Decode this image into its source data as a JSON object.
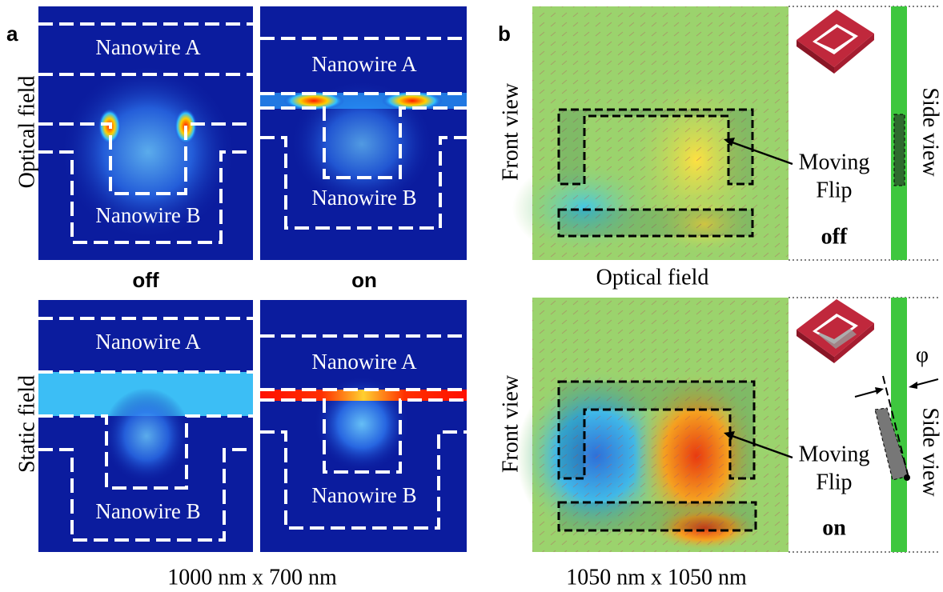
{
  "panel_a": {
    "label": "a",
    "row_labels": [
      "Optical field",
      "Static field"
    ],
    "column_labels": [
      "off",
      "on"
    ],
    "maps": [
      {
        "top_label": "Nanowire A",
        "bottom_label": "Nanowire B"
      },
      {
        "top_label": "Nanowire A",
        "bottom_label": "Nanowire B"
      },
      {
        "top_label": "Nanowire A",
        "bottom_label": "Nanowire B"
      },
      {
        "top_label": "Nanowire A",
        "bottom_label": "Nanowire B"
      }
    ],
    "caption": "1000 nm x 700 nm"
  },
  "panel_b": {
    "label": "b",
    "rows": [
      {
        "front_label": "Front view",
        "side_label": "Side view",
        "annotation": [
          "Moving",
          "Flip"
        ],
        "state": "off",
        "caption": "Optical field"
      },
      {
        "front_label": "Front view",
        "side_label": "Side view",
        "annotation": [
          "Moving",
          "Flip"
        ],
        "state": "on",
        "angle_label": "φ"
      }
    ],
    "caption": "1050 nm x 1050 nm"
  }
}
